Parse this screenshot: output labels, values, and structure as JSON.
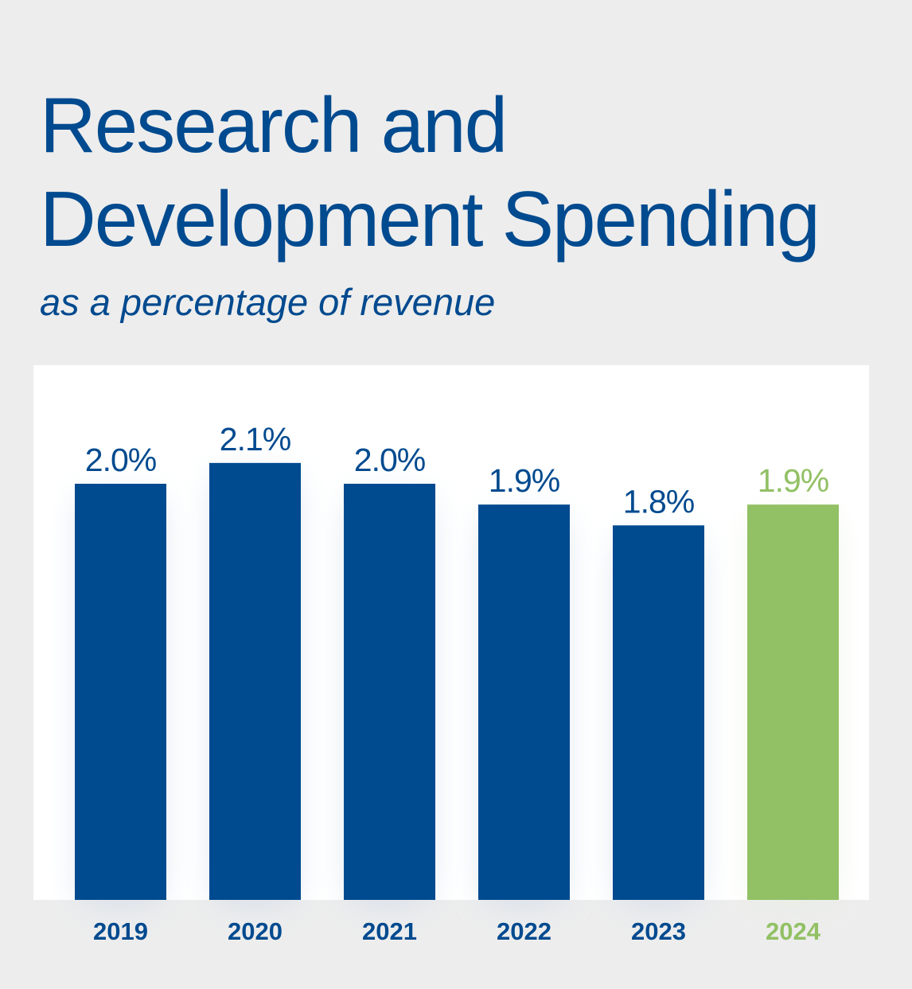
{
  "header": {
    "title_line1": "Research and",
    "title_line2": "Development Spending",
    "subtitle": "as a percentage of revenue"
  },
  "colors": {
    "primary": "#004a8f",
    "highlight": "#92c064",
    "background": "#ededed",
    "panel": "#ffffff"
  },
  "chart_data": {
    "type": "bar",
    "categories": [
      "2019",
      "2020",
      "2021",
      "2022",
      "2023",
      "2024"
    ],
    "values": [
      2.0,
      2.1,
      2.0,
      1.9,
      1.8,
      1.9
    ],
    "data_labels": [
      "2.0%",
      "2.1%",
      "2.0%",
      "1.9%",
      "1.8%",
      "1.9%"
    ],
    "highlight_index": 5,
    "unit": "%",
    "ylim": [
      0,
      2.1
    ],
    "grid": false
  }
}
